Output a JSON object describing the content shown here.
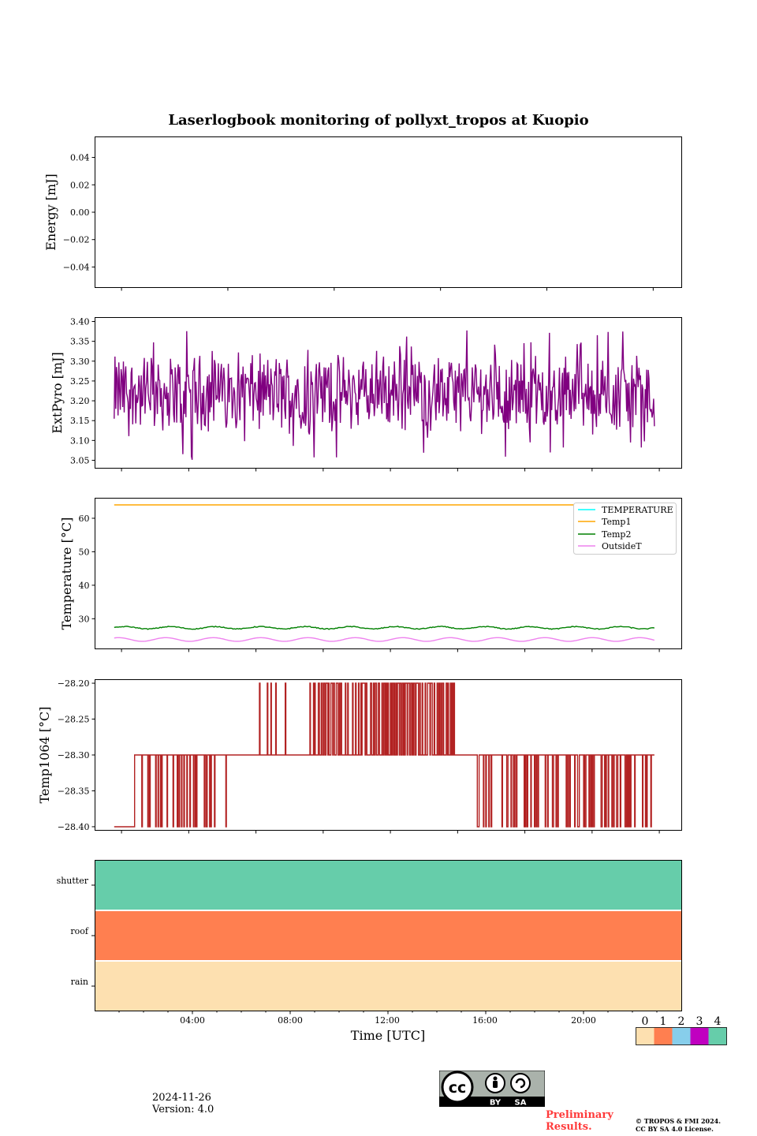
{
  "title": "Laserlogbook monitoring of pollyxt_tropos at Kuopio",
  "date": "2024-11-26",
  "version": "Version: 4.0",
  "preliminary": "Preliminary\nResults.",
  "copyright_line1": "© TROPOS & FMI 2024.",
  "copyright_line2": "CC BY SA 4.0 License.",
  "license_badge": {
    "by": "BY",
    "sa": "SA",
    "cc": "cc"
  },
  "colors": {
    "extpyro": "#800080",
    "temp1": "#ffa500",
    "temperature": "#00ffff",
    "temp2": "#008000",
    "outsideT": "#ee82ee",
    "temp1064": "#b22222",
    "status": [
      "#fde0b0",
      "#ff7f50",
      "#87ceeb",
      "#c000c0",
      "#66cdaa"
    ]
  },
  "chart_data": [
    {
      "type": "line",
      "panel": "energy",
      "ylabel": "Energy [mJ]",
      "yticks": [
        "0.04",
        "0.02",
        "0.00",
        "−0.02",
        "−0.04"
      ],
      "ylim": [
        -0.055,
        0.055
      ],
      "series": []
    },
    {
      "type": "line",
      "panel": "extpyro",
      "ylabel": "ExtPyro [mJ]",
      "yticks": [
        "3.40",
        "3.35",
        "3.30",
        "3.25",
        "3.20",
        "3.15",
        "3.10",
        "3.05"
      ],
      "ylim": [
        3.03,
        3.41
      ],
      "x_range_hours": [
        0.8,
        22.9
      ],
      "series": [
        {
          "name": "ExtPyro",
          "mean": 3.22,
          "min": 3.05,
          "max": 3.39
        }
      ]
    },
    {
      "type": "line",
      "panel": "temperature",
      "ylabel": "Temperature [°C]",
      "yticks": [
        "60",
        "50",
        "40",
        "30"
      ],
      "ylim": [
        21,
        66
      ],
      "legend_position": "top-right",
      "series": [
        {
          "name": "TEMPERATURE",
          "values": []
        },
        {
          "name": "Temp1",
          "value": 64
        },
        {
          "name": "Temp2",
          "mean": 27.3
        },
        {
          "name": "OutsideT",
          "mean": 23.8
        }
      ]
    },
    {
      "type": "line",
      "panel": "temp1064",
      "ylabel": "Temp1064 [°C]",
      "yticks": [
        "−28.20",
        "−28.25",
        "−28.30",
        "−28.35",
        "−28.40"
      ],
      "ylim": [
        -28.405,
        -28.195
      ],
      "series": [
        {
          "name": "Temp1064",
          "levels": [
            -28.4,
            -28.3,
            -28.2
          ]
        }
      ]
    },
    {
      "type": "heatmap",
      "panel": "status",
      "xlabel": "Time [UTC]",
      "xticks": [
        "04:00",
        "08:00",
        "12:00",
        "16:00",
        "20:00"
      ],
      "rows": [
        "shutter",
        "roof",
        "rain"
      ],
      "row_values": [
        4,
        1,
        0
      ],
      "colorbar_ticks": [
        "0",
        "1",
        "2",
        "3",
        "4"
      ]
    }
  ]
}
